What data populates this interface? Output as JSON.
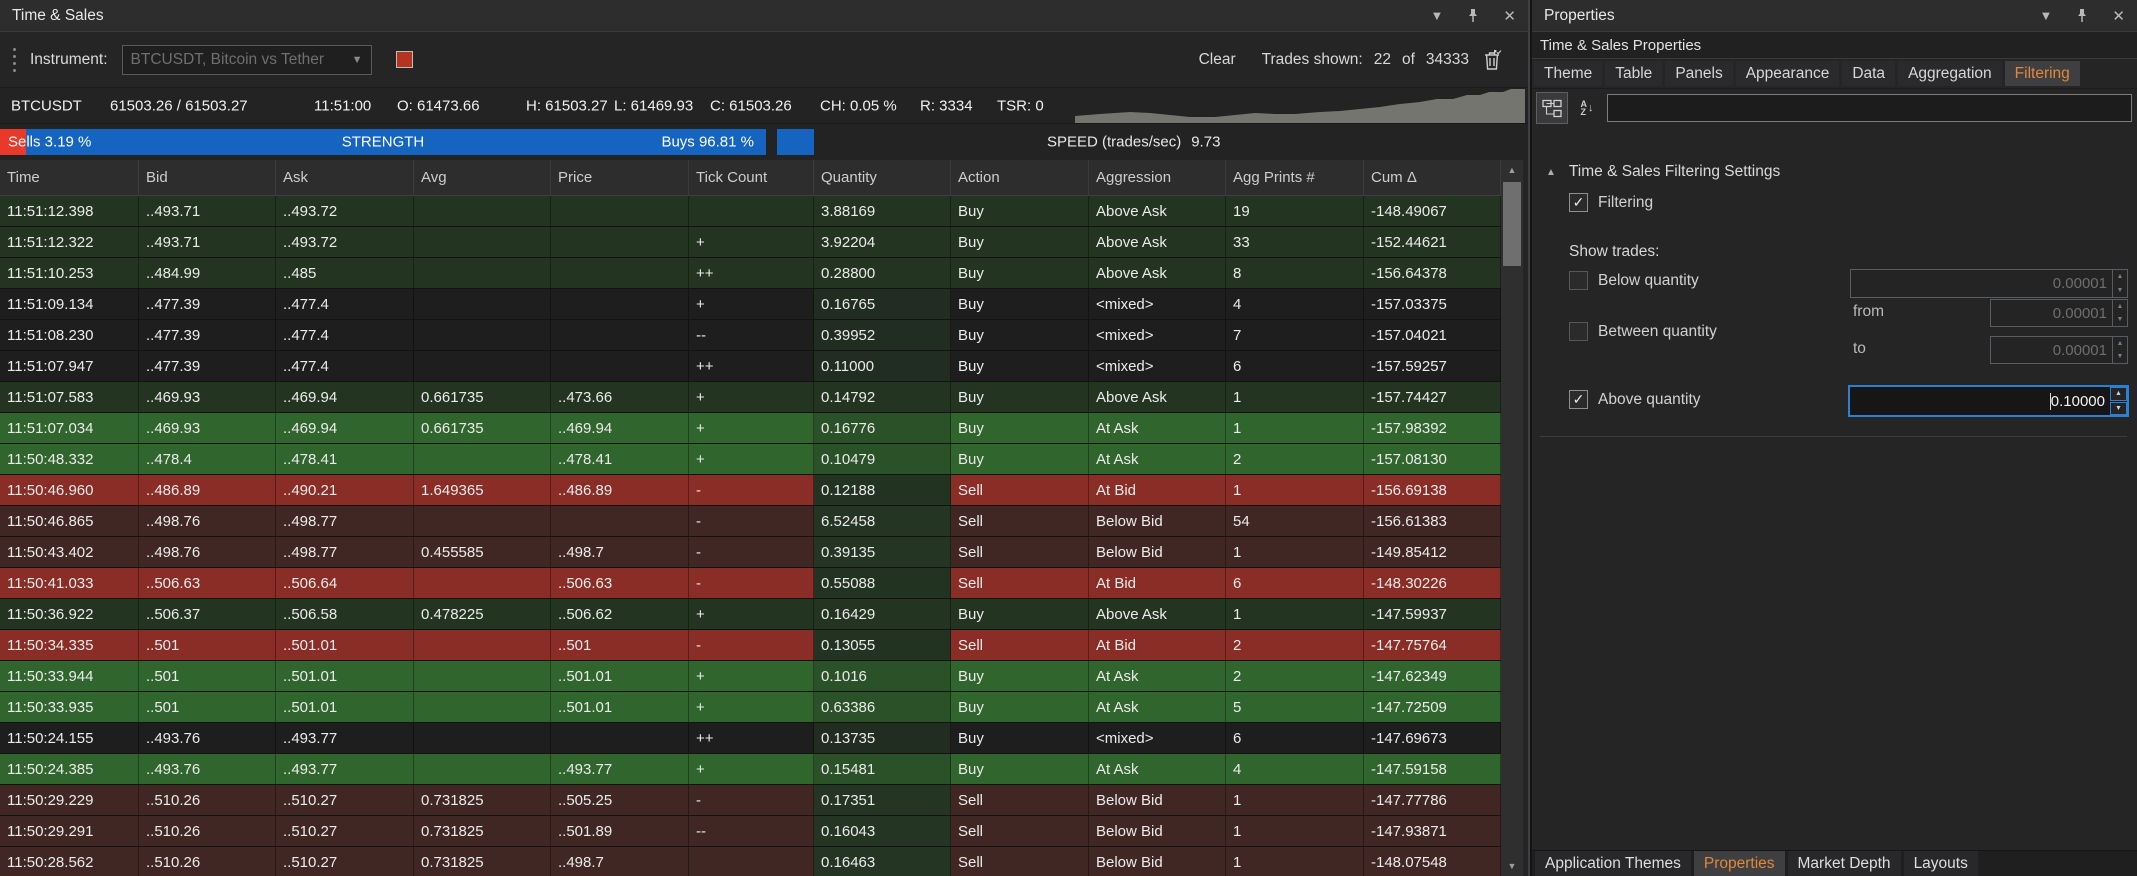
{
  "colors": {
    "accent_orange": "#e0883a",
    "strength_blue": "#1565c0",
    "sells_red": "#e8392a",
    "stop_button_red": "#b5341f",
    "focus_blue": "#2b7fd4",
    "row_buy_strong": "#31652e",
    "row_buy_weak": "#233520",
    "row_neutral": "#1e1e1e",
    "row_sell_strong": "#892d26",
    "row_sell_weak": "#402723"
  },
  "ts_panel": {
    "title": "Time & Sales",
    "toolbar": {
      "instrument_label": "Instrument:",
      "instrument_value": "BTCUSDT, Bitcoin vs Tether",
      "clear": "Clear",
      "trades_shown_label": "Trades shown:",
      "trades_shown": "22",
      "of": "of",
      "trades_total": "34333"
    },
    "status_items": [
      {
        "name": "symbol",
        "text": "BTCUSDT"
      },
      {
        "name": "bid-ask",
        "text": "61503.26 / 61503.27"
      },
      {
        "name": "last-update-time",
        "text": "11:51:00"
      },
      {
        "name": "open",
        "text": "O: 61473.66"
      },
      {
        "name": "high",
        "text": "H: 61503.27"
      },
      {
        "name": "low",
        "text": "L: 61469.93"
      },
      {
        "name": "close",
        "text": "C: 61503.26"
      },
      {
        "name": "change",
        "text": "CH: 0.05 %"
      },
      {
        "name": "range",
        "text": "R: 3334"
      },
      {
        "name": "tsr",
        "text": "TSR: 0"
      }
    ],
    "strength": {
      "sells_label": "Sells 3.19 %",
      "title": "STRENGTH",
      "buys_label": "Buys 96.81 %"
    },
    "speed": {
      "label": "SPEED (trades/sec)",
      "value": "9.73"
    },
    "table": {
      "columns": [
        "Time",
        "Bid",
        "Ask",
        "Avg",
        "Price",
        "Tick Count",
        "Quantity",
        "Action",
        "Aggression",
        "Agg Prints #",
        "Cum Δ"
      ],
      "rows": [
        {
          "time": "11:51:12.398",
          "bid": "..493.71",
          "ask": "..493.72",
          "avg": "",
          "price": "",
          "tick": "",
          "qty": "3.88169",
          "action": "Buy",
          "aggression": "Above Ask",
          "prints": "19",
          "cum": "-148.49067",
          "tone": "buy-weak"
        },
        {
          "time": "11:51:12.322",
          "bid": "..493.71",
          "ask": "..493.72",
          "avg": "",
          "price": "",
          "tick": "+",
          "qty": "3.92204",
          "action": "Buy",
          "aggression": "Above Ask",
          "prints": "33",
          "cum": "-152.44621",
          "tone": "buy-weak"
        },
        {
          "time": "11:51:10.253",
          "bid": "..484.99",
          "ask": "..485",
          "avg": "",
          "price": "",
          "tick": "++",
          "qty": "0.28800",
          "action": "Buy",
          "aggression": "Above Ask",
          "prints": "8",
          "cum": "-156.64378",
          "tone": "buy-weak"
        },
        {
          "time": "11:51:09.134",
          "bid": "..477.39",
          "ask": "..477.4",
          "avg": "",
          "price": "",
          "tick": "+",
          "qty": "0.16765",
          "action": "Buy",
          "aggression": "<mixed>",
          "prints": "4",
          "cum": "-157.03375",
          "tone": "neutral"
        },
        {
          "time": "11:51:08.230",
          "bid": "..477.39",
          "ask": "..477.4",
          "avg": "",
          "price": "",
          "tick": "--",
          "qty": "0.39952",
          "action": "Buy",
          "aggression": "<mixed>",
          "prints": "7",
          "cum": "-157.04021",
          "tone": "neutral"
        },
        {
          "time": "11:51:07.947",
          "bid": "..477.39",
          "ask": "..477.4",
          "avg": "",
          "price": "",
          "tick": "++",
          "qty": "0.11000",
          "action": "Buy",
          "aggression": "<mixed>",
          "prints": "6",
          "cum": "-157.59257",
          "tone": "neutral"
        },
        {
          "time": "11:51:07.583",
          "bid": "..469.93",
          "ask": "..469.94",
          "avg": "0.661735",
          "price": "..473.66",
          "tick": "+",
          "qty": "0.14792",
          "action": "Buy",
          "aggression": "Above Ask",
          "prints": "1",
          "cum": "-157.74427",
          "tone": "buy-weak"
        },
        {
          "time": "11:51:07.034",
          "bid": "..469.93",
          "ask": "..469.94",
          "avg": "0.661735",
          "price": "..469.94",
          "tick": "+",
          "qty": "0.16776",
          "action": "Buy",
          "aggression": "At Ask",
          "prints": "1",
          "cum": "-157.98392",
          "tone": "buy-strong"
        },
        {
          "time": "11:50:48.332",
          "bid": "..478.4",
          "ask": "..478.41",
          "avg": "",
          "price": "..478.41",
          "tick": "+",
          "qty": "0.10479",
          "action": "Buy",
          "aggression": "At Ask",
          "prints": "2",
          "cum": "-157.08130",
          "tone": "buy-strong"
        },
        {
          "time": "11:50:46.960",
          "bid": "..486.89",
          "ask": "..490.21",
          "avg": "1.649365",
          "price": "..486.89",
          "tick": "-",
          "qty": "0.12188",
          "action": "Sell",
          "aggression": "At Bid",
          "prints": "1",
          "cum": "-156.69138",
          "tone": "sell-strong"
        },
        {
          "time": "11:50:46.865",
          "bid": "..498.76",
          "ask": "..498.77",
          "avg": "",
          "price": "",
          "tick": "-",
          "qty": "6.52458",
          "action": "Sell",
          "aggression": "Below Bid",
          "prints": "54",
          "cum": "-156.61383",
          "tone": "sell-weak"
        },
        {
          "time": "11:50:43.402",
          "bid": "..498.76",
          "ask": "..498.77",
          "avg": "0.455585",
          "price": "..498.7",
          "tick": "-",
          "qty": "0.39135",
          "action": "Sell",
          "aggression": "Below Bid",
          "prints": "1",
          "cum": "-149.85412",
          "tone": "sell-weak"
        },
        {
          "time": "11:50:41.033",
          "bid": "..506.63",
          "ask": "..506.64",
          "avg": "",
          "price": "..506.63",
          "tick": "-",
          "qty": "0.55088",
          "action": "Sell",
          "aggression": "At Bid",
          "prints": "6",
          "cum": "-148.30226",
          "tone": "sell-strong"
        },
        {
          "time": "11:50:36.922",
          "bid": "..506.37",
          "ask": "..506.58",
          "avg": "0.478225",
          "price": "..506.62",
          "tick": "+",
          "qty": "0.16429",
          "action": "Buy",
          "aggression": "Above Ask",
          "prints": "1",
          "cum": "-147.59937",
          "tone": "buy-weak"
        },
        {
          "time": "11:50:34.335",
          "bid": "..501",
          "ask": "..501.01",
          "avg": "",
          "price": "..501",
          "tick": "-",
          "qty": "0.13055",
          "action": "Sell",
          "aggression": "At Bid",
          "prints": "2",
          "cum": "-147.75764",
          "tone": "sell-strong"
        },
        {
          "time": "11:50:33.944",
          "bid": "..501",
          "ask": "..501.01",
          "avg": "",
          "price": "..501.01",
          "tick": "+",
          "qty": "0.1016",
          "action": "Buy",
          "aggression": "At Ask",
          "prints": "2",
          "cum": "-147.62349",
          "tone": "buy-strong"
        },
        {
          "time": "11:50:33.935",
          "bid": "..501",
          "ask": "..501.01",
          "avg": "",
          "price": "..501.01",
          "tick": "+",
          "qty": "0.63386",
          "action": "Buy",
          "aggression": "At Ask",
          "prints": "5",
          "cum": "-147.72509",
          "tone": "buy-strong"
        },
        {
          "time": "11:50:24.155",
          "bid": "..493.76",
          "ask": "..493.77",
          "avg": "",
          "price": "",
          "tick": "++",
          "qty": "0.13735",
          "action": "Buy",
          "aggression": "<mixed>",
          "prints": "6",
          "cum": "-147.69673",
          "tone": "neutral"
        },
        {
          "time": "11:50:24.385",
          "bid": "..493.76",
          "ask": "..493.77",
          "avg": "",
          "price": "..493.77",
          "tick": "+",
          "qty": "0.15481",
          "action": "Buy",
          "aggression": "At Ask",
          "prints": "4",
          "cum": "-147.59158",
          "tone": "buy-strong"
        },
        {
          "time": "11:50:29.229",
          "bid": "..510.26",
          "ask": "..510.27",
          "avg": "0.731825",
          "price": "..505.25",
          "tick": "-",
          "qty": "0.17351",
          "action": "Sell",
          "aggression": "Below Bid",
          "prints": "1",
          "cum": "-147.77786",
          "tone": "sell-weak"
        },
        {
          "time": "11:50:29.291",
          "bid": "..510.26",
          "ask": "..510.27",
          "avg": "0.731825",
          "price": "..501.89",
          "tick": "--",
          "qty": "0.16043",
          "action": "Sell",
          "aggression": "Below Bid",
          "prints": "1",
          "cum": "-147.93871",
          "tone": "sell-weak"
        },
        {
          "time": "11:50:28.562",
          "bid": "..510.26",
          "ask": "..510.27",
          "avg": "0.731825",
          "price": "..498.7",
          "tick": "",
          "qty": "0.16463",
          "action": "Sell",
          "aggression": "Below Bid",
          "prints": "1",
          "cum": "-148.07548",
          "tone": "sell-weak"
        }
      ]
    }
  },
  "props_panel": {
    "title": "Properties",
    "subtitle": "Time & Sales Properties",
    "tabs": [
      {
        "label": "Theme",
        "selected": false
      },
      {
        "label": "Table",
        "selected": false
      },
      {
        "label": "Panels",
        "selected": false
      },
      {
        "label": "Appearance",
        "selected": false
      },
      {
        "label": "Data",
        "selected": false
      },
      {
        "label": "Aggregation",
        "selected": false
      },
      {
        "label": "Filtering",
        "selected": true
      }
    ],
    "search_value": "",
    "section_title": "Time & Sales Filtering Settings",
    "filtering_label": "Filtering",
    "filtering_checked": true,
    "show_trades_label": "Show trades:",
    "below": {
      "label": "Below quantity",
      "checked": false,
      "value": "0.00001"
    },
    "between": {
      "label": "Between quantity",
      "checked": false,
      "from_label": "from",
      "from_value": "0.00001",
      "to_label": "to",
      "to_value": "0.00001"
    },
    "above": {
      "label": "Above quantity",
      "checked": true,
      "value": "0.10000"
    },
    "bottom_tabs": [
      {
        "label": "Application Themes",
        "selected": false
      },
      {
        "label": "Properties",
        "selected": true
      },
      {
        "label": "Market Depth",
        "selected": false
      },
      {
        "label": "Layouts",
        "selected": false
      }
    ]
  }
}
